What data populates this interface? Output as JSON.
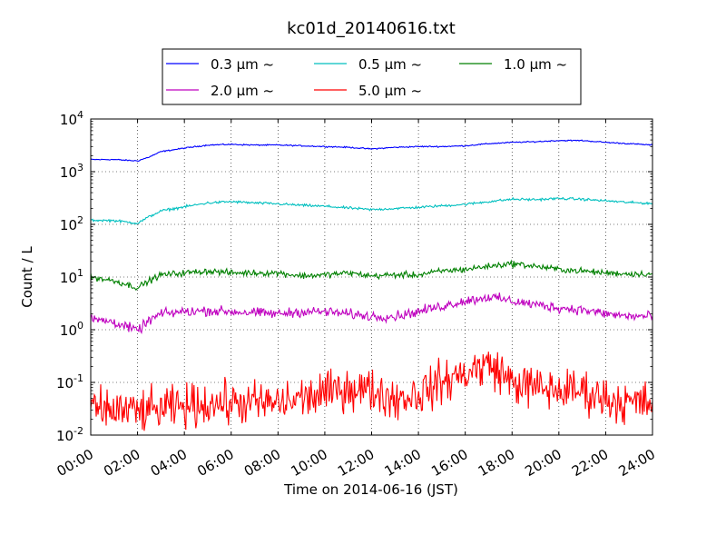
{
  "chart_data": {
    "type": "line",
    "title": "kc01d_20140616.txt",
    "xlabel": "Time on 2014-06-16 (JST)",
    "ylabel": "Count / L",
    "yscale": "log",
    "ylim": [
      0.01,
      10000
    ],
    "xlim": [
      "00:00",
      "24:00"
    ],
    "grid": true,
    "legend_position": "top",
    "x_ticks": [
      "00:00",
      "02:00",
      "04:00",
      "06:00",
      "08:00",
      "10:00",
      "12:00",
      "14:00",
      "16:00",
      "18:00",
      "20:00",
      "22:00",
      "24:00"
    ],
    "y_ticks": [
      {
        "base": "10",
        "exp": "-2"
      },
      {
        "base": "10",
        "exp": "-1"
      },
      {
        "base": "10",
        "exp": "0"
      },
      {
        "base": "10",
        "exp": "1"
      },
      {
        "base": "10",
        "exp": "2"
      },
      {
        "base": "10",
        "exp": "3"
      },
      {
        "base": "10",
        "exp": "4"
      }
    ],
    "series": [
      {
        "name": "0.3 μm ~",
        "color": "#0000ff",
        "noise": 0.01,
        "points": [
          [
            0,
            1700
          ],
          [
            1,
            1700
          ],
          [
            2,
            1600
          ],
          [
            2.5,
            1900
          ],
          [
            3,
            2400
          ],
          [
            4,
            2800
          ],
          [
            5,
            3200
          ],
          [
            6,
            3300
          ],
          [
            7,
            3200
          ],
          [
            8,
            3200
          ],
          [
            9,
            3100
          ],
          [
            10,
            3000
          ],
          [
            11,
            2900
          ],
          [
            12,
            2700
          ],
          [
            13,
            2900
          ],
          [
            14,
            3000
          ],
          [
            15,
            3000
          ],
          [
            16,
            3100
          ],
          [
            17,
            3400
          ],
          [
            18,
            3600
          ],
          [
            19,
            3700
          ],
          [
            20,
            3900
          ],
          [
            21,
            3900
          ],
          [
            22,
            3600
          ],
          [
            23,
            3400
          ],
          [
            24,
            3200
          ]
        ]
      },
      {
        "name": "0.5 μm ~",
        "color": "#00bfbf",
        "noise": 0.02,
        "points": [
          [
            0,
            120
          ],
          [
            1,
            118
          ],
          [
            2,
            105
          ],
          [
            2.5,
            140
          ],
          [
            3,
            180
          ],
          [
            4,
            215
          ],
          [
            5,
            255
          ],
          [
            6,
            270
          ],
          [
            7,
            255
          ],
          [
            8,
            245
          ],
          [
            9,
            230
          ],
          [
            10,
            220
          ],
          [
            11,
            205
          ],
          [
            12,
            190
          ],
          [
            13,
            200
          ],
          [
            14,
            210
          ],
          [
            15,
            225
          ],
          [
            16,
            240
          ],
          [
            17,
            270
          ],
          [
            18,
            300
          ],
          [
            19,
            295
          ],
          [
            20,
            310
          ],
          [
            21,
            300
          ],
          [
            22,
            280
          ],
          [
            23,
            260
          ],
          [
            24,
            250
          ]
        ]
      },
      {
        "name": "1.0 μm ~",
        "color": "#008000",
        "noise": 0.05,
        "points": [
          [
            0,
            10
          ],
          [
            1,
            8.5
          ],
          [
            2,
            6.3
          ],
          [
            2.5,
            8.5
          ],
          [
            3,
            11
          ],
          [
            4,
            12
          ],
          [
            5,
            13
          ],
          [
            6,
            12
          ],
          [
            7,
            12
          ],
          [
            8,
            12
          ],
          [
            9,
            10.5
          ],
          [
            10,
            11
          ],
          [
            11,
            12
          ],
          [
            12,
            10.5
          ],
          [
            13,
            11
          ],
          [
            14,
            11
          ],
          [
            15,
            13
          ],
          [
            16,
            14
          ],
          [
            17,
            16
          ],
          [
            18,
            18
          ],
          [
            19,
            16
          ],
          [
            20,
            14
          ],
          [
            21,
            13
          ],
          [
            22,
            12
          ],
          [
            23,
            11.5
          ],
          [
            24,
            11.5
          ]
        ]
      },
      {
        "name": "2.0 μm ~",
        "color": "#bf00bf",
        "noise": 0.08,
        "points": [
          [
            0,
            1.6
          ],
          [
            1,
            1.4
          ],
          [
            2,
            0.95
          ],
          [
            2.5,
            1.5
          ],
          [
            3,
            2.0
          ],
          [
            4,
            2.2
          ],
          [
            5,
            2.3
          ],
          [
            6,
            2.2
          ],
          [
            7,
            2.1
          ],
          [
            8,
            2.0
          ],
          [
            9,
            2.2
          ],
          [
            10,
            2.2
          ],
          [
            11,
            2.0
          ],
          [
            12,
            1.8
          ],
          [
            13,
            1.8
          ],
          [
            14,
            2.2
          ],
          [
            15,
            2.8
          ],
          [
            16,
            3.5
          ],
          [
            17,
            4.2
          ],
          [
            18,
            3.5
          ],
          [
            19,
            3.0
          ],
          [
            20,
            2.6
          ],
          [
            21,
            2.4
          ],
          [
            22,
            2.0
          ],
          [
            23,
            1.8
          ],
          [
            24,
            1.8
          ]
        ]
      },
      {
        "name": "5.0 μm ~",
        "color": "#ff0000",
        "noise": 0.35,
        "floor": 0.012,
        "points": [
          [
            0,
            0.03
          ],
          [
            1,
            0.03
          ],
          [
            2,
            0.028
          ],
          [
            3,
            0.03
          ],
          [
            4,
            0.035
          ],
          [
            5,
            0.04
          ],
          [
            6,
            0.04
          ],
          [
            7,
            0.04
          ],
          [
            8,
            0.04
          ],
          [
            9,
            0.05
          ],
          [
            10,
            0.06
          ],
          [
            11,
            0.08
          ],
          [
            12,
            0.07
          ],
          [
            13,
            0.05
          ],
          [
            14,
            0.06
          ],
          [
            15,
            0.1
          ],
          [
            16,
            0.15
          ],
          [
            17,
            0.22
          ],
          [
            17.5,
            0.16
          ],
          [
            18,
            0.1
          ],
          [
            19,
            0.08
          ],
          [
            20,
            0.07
          ],
          [
            21,
            0.07
          ],
          [
            22,
            0.05
          ],
          [
            23,
            0.04
          ],
          [
            24,
            0.04
          ]
        ]
      }
    ]
  }
}
